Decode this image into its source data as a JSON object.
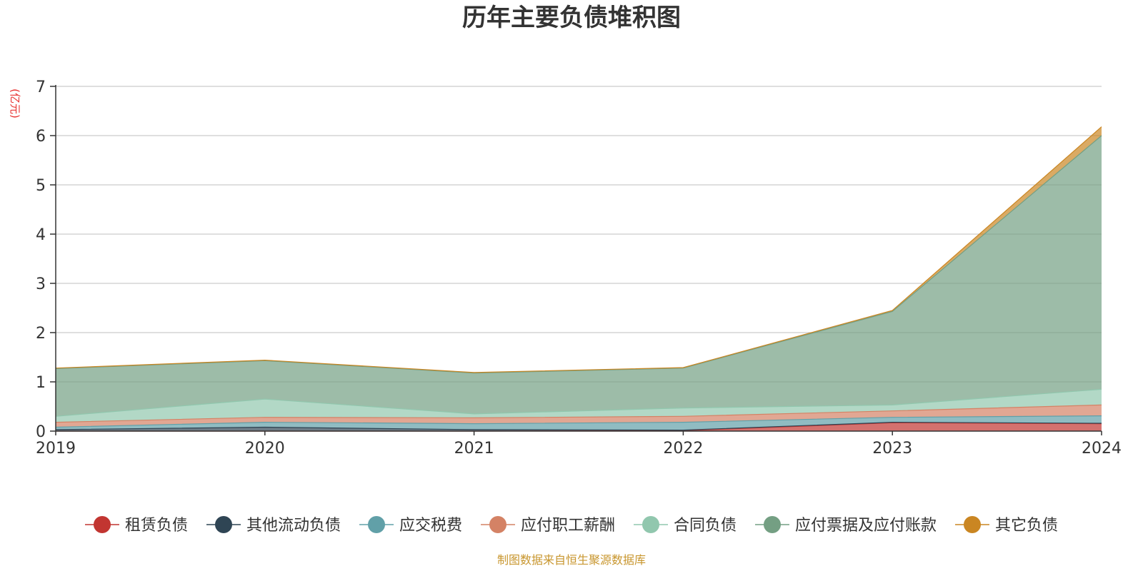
{
  "chart_data": {
    "type": "area",
    "stacked": true,
    "title": "历年主要负债堆积图",
    "y_unit": "(亿元)",
    "x": [
      "2019",
      "2020",
      "2021",
      "2022",
      "2023",
      "2024"
    ],
    "y_ticks": [
      "0",
      "1",
      "2",
      "3",
      "4",
      "5",
      "6",
      "7"
    ],
    "ylim": [
      0,
      7
    ],
    "grid": true,
    "legend_position": "bottom",
    "series": [
      {
        "name": "租赁负债",
        "color": "#c23531",
        "values": [
          0,
          0,
          0,
          0.01,
          0.17,
          0.15
        ]
      },
      {
        "name": "其他流动负债",
        "color": "#2f4554",
        "values": [
          0.03,
          0.08,
          0.03,
          0.01,
          0.01,
          0.01
        ]
      },
      {
        "name": "应交税费",
        "color": "#61a0a8",
        "values": [
          0.05,
          0.1,
          0.12,
          0.16,
          0.1,
          0.15
        ]
      },
      {
        "name": "应付职工薪酬",
        "color": "#d48265",
        "values": [
          0.1,
          0.1,
          0.12,
          0.12,
          0.13,
          0.22
        ]
      },
      {
        "name": "合同负债",
        "color": "#91c7ae",
        "values": [
          0.12,
          0.37,
          0.08,
          0.17,
          0.12,
          0.32
        ]
      },
      {
        "name": "应付票据及应付账款",
        "color": "#749f83",
        "values": [
          0.97,
          0.78,
          0.83,
          0.81,
          1.9,
          5.15
        ]
      },
      {
        "name": "其它负债",
        "color": "#ca8622",
        "values": [
          0.01,
          0.01,
          0.01,
          0.01,
          0.02,
          0.18
        ]
      }
    ]
  },
  "source_note": "制图数据来自恒生聚源数据库"
}
